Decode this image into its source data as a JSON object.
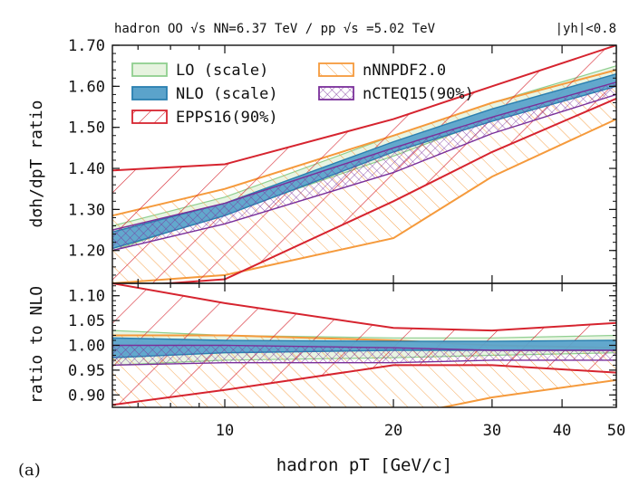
{
  "header": {
    "left": "hadron OO √s NN=6.37 TeV / pp √s =5.02 TeV",
    "right": "|yh|<0.8"
  },
  "panel_label": "(a)",
  "colors": {
    "LO": "#8fcf8f",
    "NLO": "#2a7fb0",
    "EPPS16": "#d6242f",
    "nNNPDF": "#f59a3c",
    "nCTEQ": "#7a2f9a"
  },
  "chart_data": [
    {
      "type": "area",
      "panel": "top",
      "xlabel": "hadron pT [GeV/c]",
      "ylabel": "dσh/dpT ratio",
      "xscale": "log",
      "xlim": [
        6.3,
        50
      ],
      "ylim": [
        1.12,
        1.7
      ],
      "yticks": [
        "1.20",
        "1.30",
        "1.40",
        "1.50",
        "1.60",
        "1.70"
      ],
      "grid": false,
      "legend_position": "top-left, two columns",
      "x": [
        6.3,
        10,
        20,
        30,
        50
      ],
      "series": [
        {
          "name": "LO (scale)",
          "key": "LO",
          "style": "light-fill",
          "upper": [
            1.26,
            1.33,
            1.48,
            1.56,
            1.65
          ],
          "lower": [
            1.2,
            1.29,
            1.43,
            1.52,
            1.6
          ]
        },
        {
          "name": "NLO (scale)",
          "key": "NLO",
          "style": "solid-fill",
          "upper": [
            1.245,
            1.315,
            1.465,
            1.545,
            1.63
          ],
          "lower": [
            1.205,
            1.285,
            1.44,
            1.515,
            1.6
          ]
        },
        {
          "name": "EPPS16(90%)",
          "key": "EPPS16",
          "style": "hatch-back",
          "upper": [
            1.395,
            1.41,
            1.52,
            1.6,
            1.7
          ],
          "lower": [
            1.11,
            1.13,
            1.32,
            1.44,
            1.57
          ]
        },
        {
          "name": "nNNPDF2.0",
          "key": "nNNPDF",
          "style": "hatch-fwd",
          "upper": [
            1.285,
            1.35,
            1.48,
            1.56,
            1.64
          ],
          "lower": [
            1.12,
            1.14,
            1.23,
            1.38,
            1.52
          ]
        },
        {
          "name": "nCTEQ15(90%)",
          "key": "nCTEQ",
          "style": "crosshatch",
          "upper": [
            1.25,
            1.315,
            1.45,
            1.525,
            1.61
          ],
          "lower": [
            1.2,
            1.265,
            1.39,
            1.485,
            1.58
          ]
        }
      ],
      "legend": {
        "left": [
          "LO (scale)",
          "NLO (scale)",
          "EPPS16(90%)"
        ],
        "right": [
          "nNNPDF2.0",
          "nCTEQ15(90%)"
        ]
      }
    },
    {
      "type": "area",
      "panel": "bottom",
      "ylabel": "ratio to NLO",
      "xscale": "log",
      "xlim": [
        6.3,
        50
      ],
      "ylim": [
        0.875,
        1.125
      ],
      "yticks": [
        "0.90",
        "0.95",
        "1.00",
        "1.05",
        "1.10"
      ],
      "xticks": [
        "10",
        "20",
        "30",
        "40",
        "50"
      ],
      "x": [
        6.3,
        10,
        20,
        30,
        50
      ],
      "series": [
        {
          "key": "LO",
          "style": "light-fill",
          "upper": [
            1.03,
            1.02,
            1.015,
            1.015,
            1.02
          ],
          "lower": [
            0.96,
            0.97,
            0.975,
            0.98,
            0.985
          ]
        },
        {
          "key": "NLO",
          "style": "solid-fill",
          "upper": [
            1.015,
            1.01,
            1.008,
            1.008,
            1.01
          ],
          "lower": [
            0.975,
            0.985,
            0.99,
            0.99,
            0.99
          ]
        },
        {
          "key": "EPPS16",
          "style": "hatch-back",
          "upper": [
            1.125,
            1.085,
            1.035,
            1.03,
            1.045
          ],
          "lower": [
            0.88,
            0.91,
            0.96,
            0.96,
            0.945
          ]
        },
        {
          "key": "nNNPDF",
          "style": "hatch-fwd",
          "upper": [
            1.02,
            1.02,
            1.01,
            1.0,
            0.995
          ],
          "lower": [
            0.87,
            0.86,
            0.855,
            0.895,
            0.93
          ]
        },
        {
          "key": "nCTEQ",
          "style": "crosshatch",
          "upper": [
            1.0,
            1.0,
            0.995,
            0.99,
            0.99
          ],
          "lower": [
            0.96,
            0.965,
            0.965,
            0.97,
            0.97
          ]
        }
      ]
    }
  ]
}
